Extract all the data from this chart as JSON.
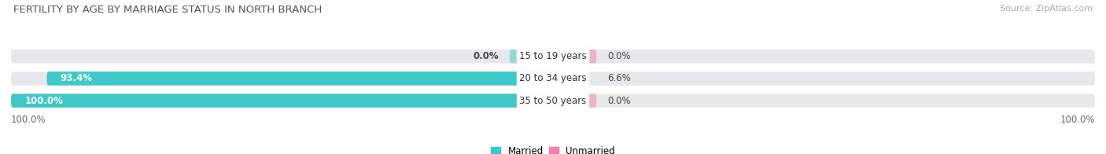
{
  "title": "FERTILITY BY AGE BY MARRIAGE STATUS IN NORTH BRANCH",
  "source": "Source: ZipAtlas.com",
  "categories": [
    "15 to 19 years",
    "20 to 34 years",
    "35 to 50 years"
  ],
  "married_values": [
    0.0,
    93.4,
    100.0
  ],
  "unmarried_values": [
    0.0,
    6.6,
    0.0
  ],
  "married_color": "#3ec8c8",
  "unmarried_color": "#f47eb0",
  "bar_bg_color": "#e8e8ec",
  "bar_height": 0.62,
  "max_value": 100.0,
  "legend_married": "Married",
  "legend_unmarried": "Unmarried",
  "left_label": "100.0%",
  "right_label": "100.0%",
  "title_fontsize": 9.5,
  "label_fontsize": 8.5,
  "tick_fontsize": 8.5,
  "source_fontsize": 8,
  "cat_label_fontsize": 8.5
}
